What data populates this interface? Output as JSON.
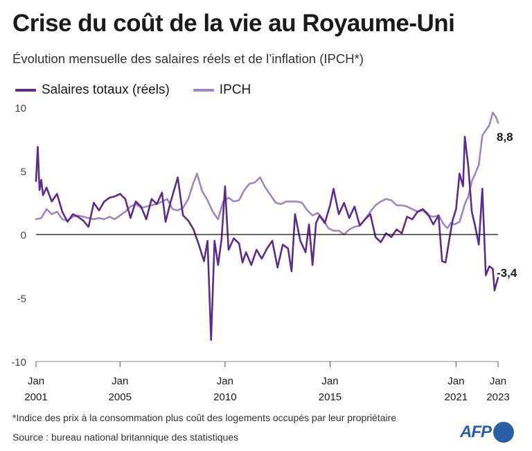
{
  "title": "Crise du coût de la vie au Royaume-Uni",
  "subtitle": "Évolution mensuelle des salaires réels et de l’inflation (IPCH*)",
  "footnote": "*Indice des prix à la consommation plus coût des logements occupés par leur propriétaire",
  "source": "Source : bureau national britannique des statistiques",
  "logo": "AFP",
  "colors": {
    "wages": "#5b2d86",
    "cpih": "#9f86bd",
    "axis": "#1a1a1a",
    "tick_text": "#444444",
    "logo": "#2b5fa3"
  },
  "chart_data": {
    "type": "line",
    "title": "Crise du coût de la vie au Royaume-Uni",
    "subtitle": "Évolution mensuelle des salaires réels et de l’inflation (IPCH*)",
    "xlabel": "",
    "ylabel": "",
    "x_range": [
      "2001-01",
      "2023-01"
    ],
    "ylim": [
      -10,
      10
    ],
    "yticks": [
      10,
      5,
      0,
      -5,
      -10
    ],
    "ytick_labels": [
      "10",
      "5",
      "0",
      "-5",
      "-10"
    ],
    "xticks": [
      {
        "date": "2001-01",
        "label_month": "Jan",
        "label_year": "2001"
      },
      {
        "date": "2005-01",
        "label_month": "Jan",
        "label_year": "2005"
      },
      {
        "date": "2010-01",
        "label_month": "Jan",
        "label_year": "2010"
      },
      {
        "date": "2015-01",
        "label_month": "Jan",
        "label_year": "2015"
      },
      {
        "date": "2021-01",
        "label_month": "Jan",
        "label_year": "2021"
      },
      {
        "date": "2023-01",
        "label_month": "Jan",
        "label_year": "2023"
      }
    ],
    "grid": false,
    "zero_line": true,
    "legend_position": "top-left",
    "series": [
      {
        "name": "Salaires totaux (réels)",
        "color": "#5b2d86",
        "end_label": "-3,4",
        "points": [
          [
            "2001-01",
            4.2
          ],
          [
            "2001-02",
            6.9
          ],
          [
            "2001-03",
            3.5
          ],
          [
            "2001-04",
            4.3
          ],
          [
            "2001-05",
            3.1
          ],
          [
            "2001-07",
            3.7
          ],
          [
            "2001-10",
            2.6
          ],
          [
            "2002-01",
            3.2
          ],
          [
            "2002-04",
            1.8
          ],
          [
            "2002-07",
            1.0
          ],
          [
            "2002-10",
            1.6
          ],
          [
            "2003-01",
            1.4
          ],
          [
            "2003-04",
            1.1
          ],
          [
            "2003-07",
            0.6
          ],
          [
            "2003-10",
            2.5
          ],
          [
            "2004-01",
            1.9
          ],
          [
            "2004-04",
            2.6
          ],
          [
            "2004-07",
            2.9
          ],
          [
            "2004-10",
            3.0
          ],
          [
            "2005-01",
            3.2
          ],
          [
            "2005-04",
            2.8
          ],
          [
            "2005-07",
            1.3
          ],
          [
            "2005-10",
            2.6
          ],
          [
            "2006-01",
            2.2
          ],
          [
            "2006-04",
            1.2
          ],
          [
            "2006-07",
            2.8
          ],
          [
            "2006-10",
            2.4
          ],
          [
            "2007-01",
            3.3
          ],
          [
            "2007-03",
            1.0
          ],
          [
            "2007-06",
            2.6
          ],
          [
            "2007-10",
            4.5
          ],
          [
            "2008-01",
            1.5
          ],
          [
            "2008-04",
            1.1
          ],
          [
            "2008-07",
            0.4
          ],
          [
            "2008-10",
            -0.8
          ],
          [
            "2009-01",
            -2.1
          ],
          [
            "2009-03",
            -0.5
          ],
          [
            "2009-05",
            -8.3
          ],
          [
            "2009-07",
            -0.5
          ],
          [
            "2009-09",
            -2.4
          ],
          [
            "2009-11",
            -0.4
          ],
          [
            "2010-01",
            3.8
          ],
          [
            "2010-03",
            -1.2
          ],
          [
            "2010-06",
            -0.3
          ],
          [
            "2010-09",
            -0.7
          ],
          [
            "2010-11",
            -2.2
          ],
          [
            "2011-01",
            -1.4
          ],
          [
            "2011-04",
            -2.4
          ],
          [
            "2011-07",
            -1.2
          ],
          [
            "2011-10",
            -1.9
          ],
          [
            "2012-01",
            -1.1
          ],
          [
            "2012-04",
            -0.5
          ],
          [
            "2012-07",
            -2.6
          ],
          [
            "2012-10",
            -0.8
          ],
          [
            "2013-01",
            -1.1
          ],
          [
            "2013-03",
            -2.9
          ],
          [
            "2013-05",
            1.6
          ],
          [
            "2013-08",
            -0.5
          ],
          [
            "2013-11",
            -1.4
          ],
          [
            "2014-01",
            0.8
          ],
          [
            "2014-03",
            -2.4
          ],
          [
            "2014-05",
            0.9
          ],
          [
            "2014-07",
            1.5
          ],
          [
            "2014-10",
            0.9
          ],
          [
            "2015-01",
            2.3
          ],
          [
            "2015-03",
            3.6
          ],
          [
            "2015-06",
            1.6
          ],
          [
            "2015-09",
            2.5
          ],
          [
            "2015-12",
            1.3
          ],
          [
            "2016-03",
            2.2
          ],
          [
            "2016-06",
            0.7
          ],
          [
            "2016-09",
            1.2
          ],
          [
            "2016-12",
            1.6
          ],
          [
            "2017-03",
            -0.2
          ],
          [
            "2017-06",
            -0.6
          ],
          [
            "2017-09",
            0.1
          ],
          [
            "2017-12",
            -0.2
          ],
          [
            "2018-03",
            0.4
          ],
          [
            "2018-06",
            0.1
          ],
          [
            "2018-09",
            1.4
          ],
          [
            "2018-12",
            1.2
          ],
          [
            "2019-03",
            1.8
          ],
          [
            "2019-06",
            2.0
          ],
          [
            "2019-09",
            1.6
          ],
          [
            "2019-12",
            0.8
          ],
          [
            "2020-03",
            1.5
          ],
          [
            "2020-05",
            -2.1
          ],
          [
            "2020-07",
            -2.2
          ],
          [
            "2020-09",
            -0.5
          ],
          [
            "2020-11",
            1.1
          ],
          [
            "2021-01",
            2.0
          ],
          [
            "2021-03",
            4.8
          ],
          [
            "2021-05",
            3.8
          ],
          [
            "2021-06",
            7.7
          ],
          [
            "2021-08",
            5.4
          ],
          [
            "2021-10",
            1.8
          ],
          [
            "2021-12",
            0.6
          ],
          [
            "2022-02",
            -0.8
          ],
          [
            "2022-04",
            3.6
          ],
          [
            "2022-06",
            -3.2
          ],
          [
            "2022-08",
            -2.5
          ],
          [
            "2022-10",
            -2.7
          ],
          [
            "2022-11",
            -4.4
          ],
          [
            "2023-01",
            -3.4
          ]
        ]
      },
      {
        "name": "IPCH",
        "color": "#9f86bd",
        "end_label": "8,8",
        "points": [
          [
            "2001-01",
            1.2
          ],
          [
            "2001-04",
            1.3
          ],
          [
            "2001-07",
            2.0
          ],
          [
            "2001-10",
            1.6
          ],
          [
            "2002-01",
            1.8
          ],
          [
            "2002-04",
            1.2
          ],
          [
            "2002-07",
            1.1
          ],
          [
            "2002-10",
            1.4
          ],
          [
            "2003-01",
            1.5
          ],
          [
            "2003-04",
            1.4
          ],
          [
            "2003-07",
            1.3
          ],
          [
            "2003-10",
            1.2
          ],
          [
            "2004-01",
            1.3
          ],
          [
            "2004-04",
            1.2
          ],
          [
            "2004-07",
            1.4
          ],
          [
            "2004-10",
            1.2
          ],
          [
            "2005-01",
            1.5
          ],
          [
            "2005-04",
            1.8
          ],
          [
            "2005-07",
            2.2
          ],
          [
            "2005-10",
            2.4
          ],
          [
            "2006-01",
            2.1
          ],
          [
            "2006-04",
            2.2
          ],
          [
            "2006-07",
            2.3
          ],
          [
            "2006-10",
            2.4
          ],
          [
            "2007-01",
            2.6
          ],
          [
            "2007-04",
            2.8
          ],
          [
            "2007-07",
            2.0
          ],
          [
            "2007-10",
            1.9
          ],
          [
            "2008-01",
            2.1
          ],
          [
            "2008-04",
            2.8
          ],
          [
            "2008-07",
            4.1
          ],
          [
            "2008-09",
            4.8
          ],
          [
            "2008-12",
            3.4
          ],
          [
            "2009-03",
            2.7
          ],
          [
            "2009-06",
            1.8
          ],
          [
            "2009-09",
            1.2
          ],
          [
            "2009-12",
            2.6
          ],
          [
            "2010-03",
            2.9
          ],
          [
            "2010-06",
            2.6
          ],
          [
            "2010-09",
            2.7
          ],
          [
            "2010-12",
            3.5
          ],
          [
            "2011-03",
            4.0
          ],
          [
            "2011-06",
            4.1
          ],
          [
            "2011-09",
            4.5
          ],
          [
            "2011-12",
            3.7
          ],
          [
            "2012-03",
            3.1
          ],
          [
            "2012-06",
            2.5
          ],
          [
            "2012-09",
            2.4
          ],
          [
            "2012-12",
            2.6
          ],
          [
            "2013-03",
            2.6
          ],
          [
            "2013-06",
            2.6
          ],
          [
            "2013-09",
            2.5
          ],
          [
            "2013-12",
            1.9
          ],
          [
            "2014-03",
            1.5
          ],
          [
            "2014-06",
            1.7
          ],
          [
            "2014-09",
            1.2
          ],
          [
            "2014-12",
            0.5
          ],
          [
            "2015-03",
            0.3
          ],
          [
            "2015-06",
            0.3
          ],
          [
            "2015-09",
            0.0
          ],
          [
            "2015-12",
            0.4
          ],
          [
            "2016-03",
            0.6
          ],
          [
            "2016-06",
            0.7
          ],
          [
            "2016-09",
            1.2
          ],
          [
            "2016-12",
            1.8
          ],
          [
            "2017-03",
            2.3
          ],
          [
            "2017-06",
            2.6
          ],
          [
            "2017-09",
            2.8
          ],
          [
            "2017-12",
            2.7
          ],
          [
            "2018-03",
            2.3
          ],
          [
            "2018-06",
            2.3
          ],
          [
            "2018-09",
            2.2
          ],
          [
            "2018-12",
            2.0
          ],
          [
            "2019-03",
            1.8
          ],
          [
            "2019-06",
            1.9
          ],
          [
            "2019-09",
            1.5
          ],
          [
            "2019-12",
            1.4
          ],
          [
            "2020-03",
            1.5
          ],
          [
            "2020-06",
            0.8
          ],
          [
            "2020-08",
            0.5
          ],
          [
            "2020-10",
            0.9
          ],
          [
            "2020-12",
            0.8
          ],
          [
            "2021-03",
            1.0
          ],
          [
            "2021-06",
            2.4
          ],
          [
            "2021-08",
            3.0
          ],
          [
            "2021-10",
            4.2
          ],
          [
            "2021-12",
            4.8
          ],
          [
            "2022-02",
            5.5
          ],
          [
            "2022-04",
            7.8
          ],
          [
            "2022-06",
            8.2
          ],
          [
            "2022-08",
            8.6
          ],
          [
            "2022-10",
            9.6
          ],
          [
            "2022-12",
            9.2
          ],
          [
            "2023-01",
            8.8
          ]
        ]
      }
    ]
  }
}
